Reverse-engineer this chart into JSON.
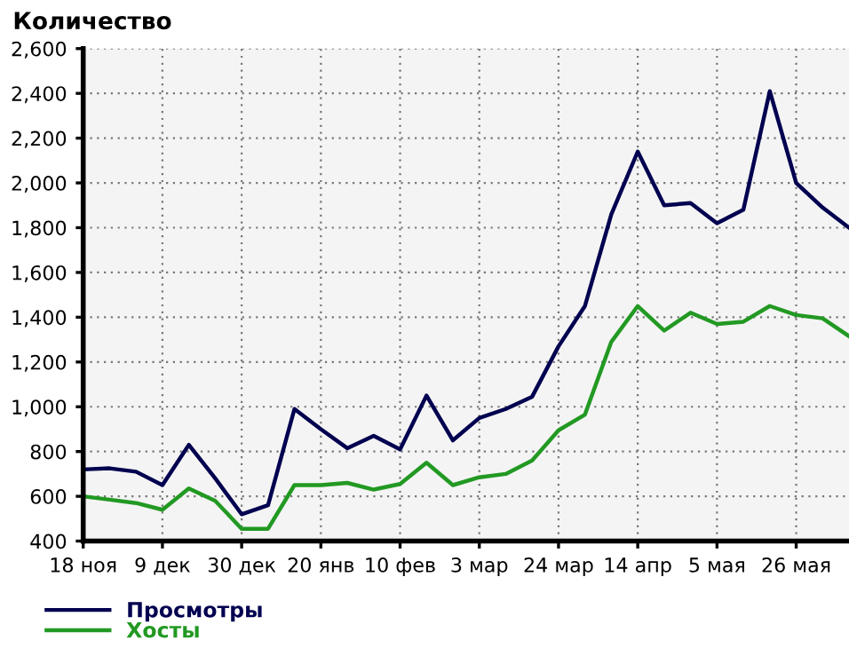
{
  "chart_data": {
    "type": "line",
    "title": "Количество",
    "categories": [
      "18 ноя",
      null,
      null,
      "9 дек",
      null,
      null,
      "30 дек",
      null,
      null,
      "20 янв",
      null,
      null,
      "10 фев",
      null,
      null,
      "3 мар",
      null,
      null,
      "24 мар",
      null,
      null,
      "14 апр",
      null,
      null,
      "5 мая",
      null,
      null,
      "26 мая",
      null,
      null
    ],
    "series": [
      {
        "name": "Просмотры",
        "color": "#000050",
        "values": [
          720,
          725,
          710,
          650,
          830,
          680,
          520,
          560,
          990,
          900,
          815,
          870,
          810,
          1050,
          850,
          950,
          990,
          1045,
          1270,
          1450,
          1860,
          2140,
          1900,
          1910,
          1820,
          1880,
          2410,
          2000,
          1890,
          1800
        ]
      },
      {
        "name": "Хосты",
        "color": "#229922",
        "values": [
          600,
          585,
          570,
          540,
          635,
          580,
          455,
          455,
          650,
          650,
          660,
          630,
          655,
          750,
          650,
          685,
          700,
          760,
          895,
          965,
          1290,
          1450,
          1340,
          1420,
          1370,
          1380,
          1450,
          1410,
          1395,
          1315
        ]
      }
    ],
    "ylim": [
      400,
      2600
    ],
    "yticks": [
      {
        "value": 400,
        "label": "400"
      },
      {
        "value": 600,
        "label": "600"
      },
      {
        "value": 800,
        "label": "800"
      },
      {
        "value": 1000,
        "label": "1,000"
      },
      {
        "value": 1200,
        "label": "1,200"
      },
      {
        "value": 1400,
        "label": "1,400"
      },
      {
        "value": 1600,
        "label": "1,600"
      },
      {
        "value": 1800,
        "label": "1,800"
      },
      {
        "value": 2000,
        "label": "2,000"
      },
      {
        "value": 2200,
        "label": "2,200"
      },
      {
        "value": 2400,
        "label": "2,400"
      },
      {
        "value": 2600,
        "label": "2,600"
      }
    ],
    "grid": true,
    "legend": "bottom left",
    "line_style": "solid",
    "marker": "none"
  }
}
